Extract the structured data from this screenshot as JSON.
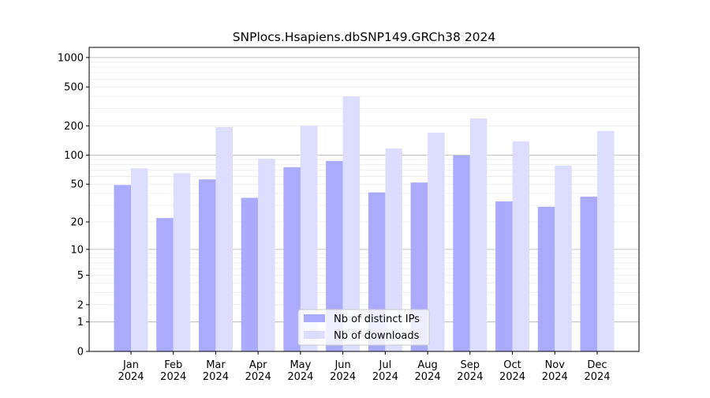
{
  "chart_data": {
    "type": "bar",
    "title": "SNPlocs.Hsapiens.dbSNP149.GRCh38 2024",
    "xlabel": "",
    "ylabel": "",
    "yscale": "log10(1+y)",
    "ylim": [
      0,
      1270
    ],
    "grid": true,
    "legend_position": "bottom-center",
    "categories": [
      "Jan\n2024",
      "Feb\n2024",
      "Mar\n2024",
      "Apr\n2024",
      "May\n2024",
      "Jun\n2024",
      "Jul\n2024",
      "Aug\n2024",
      "Sep\n2024",
      "Oct\n2024",
      "Nov\n2024",
      "Dec\n2024"
    ],
    "yticks": [
      0,
      1,
      2,
      5,
      10,
      20,
      50,
      100,
      200,
      500,
      1000
    ],
    "ytick_labels": [
      "0",
      "1",
      "2",
      "5",
      "10",
      "20",
      "50",
      "100",
      "200",
      "500",
      "1000"
    ],
    "series": [
      {
        "name": "Nb of distinct IPs",
        "color": "#aaaaff",
        "values": [
          49,
          22,
          56,
          36,
          75,
          87,
          41,
          52,
          99,
          33,
          29,
          37
        ]
      },
      {
        "name": "Nb of downloads",
        "color": "#ddddff",
        "values": [
          73,
          65,
          194,
          92,
          201,
          402,
          117,
          170,
          238,
          139,
          78,
          177
        ]
      }
    ]
  }
}
